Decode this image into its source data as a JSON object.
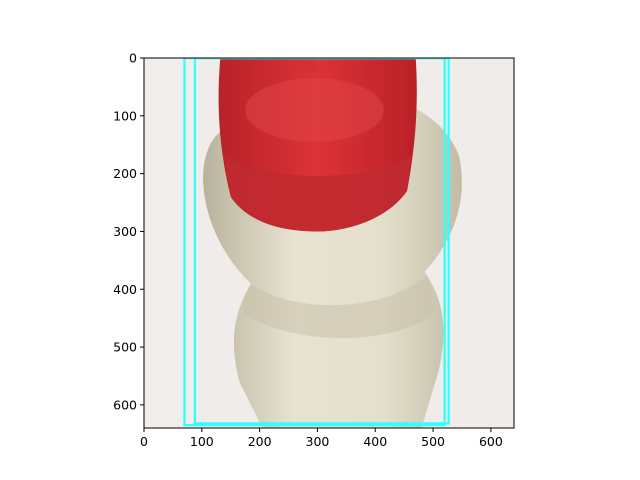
{
  "figure": {
    "x_axis": {
      "range": [
        0,
        640
      ],
      "ticks": [
        0,
        100,
        200,
        300,
        400,
        500,
        600
      ],
      "tick_labels": [
        "0",
        "100",
        "200",
        "300",
        "400",
        "500",
        "600"
      ]
    },
    "y_axis": {
      "range": [
        640,
        0
      ],
      "inverted": true,
      "ticks": [
        0,
        100,
        200,
        300,
        400,
        500,
        600
      ],
      "tick_labels": [
        "0",
        "100",
        "200",
        "300",
        "400",
        "500",
        "600"
      ]
    },
    "image": {
      "subject": "plastic bottle with red screw cap",
      "colors": {
        "background": "#efecea",
        "bottle": "#e6e1cf",
        "bottle_shadow": "#b5b09b",
        "cap": "#d42f33",
        "cap_shadow": "#9e1b22"
      }
    },
    "boxes": {
      "color": "#33ffff",
      "items": [
        {
          "xmin": 70,
          "ymin": 0,
          "xmax": 520,
          "ymax": 635
        },
        {
          "xmin": 88,
          "ymin": 0,
          "xmax": 527,
          "ymax": 632
        }
      ]
    }
  }
}
